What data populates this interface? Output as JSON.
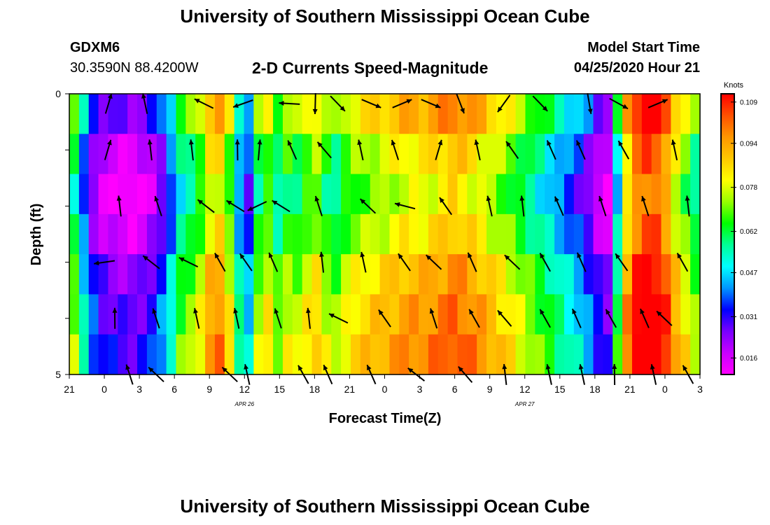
{
  "header": {
    "title": "University of Southern Mississippi Ocean Cube",
    "station": "GDXM6",
    "coordinates": "30.3590N 88.4200W",
    "chart_title": "2-D Currents Speed-Magnitude",
    "model_start_label": "Model Start Time",
    "model_start_value": "04/25/2020 Hour 21"
  },
  "footer": {
    "title": "University of Southern Mississippi Ocean Cube"
  },
  "colors": {
    "palette": [
      "#ff00ff",
      "#c800ff",
      "#7800ff",
      "#0000ff",
      "#0096ff",
      "#00ffff",
      "#00ff96",
      "#00ff00",
      "#96ff00",
      "#ffff00",
      "#ffc800",
      "#ff9600",
      "#ff5000",
      "#ff0000"
    ],
    "arrow": "#000000"
  },
  "chart_data": {
    "type": "heatmap",
    "title": "2-D Currents Speed-Magnitude",
    "xlabel": "Forecast Time(Z)",
    "ylabel": "Depth (ft)",
    "x_tick_labels": [
      "21",
      "0",
      "3",
      "6",
      "9",
      "12",
      "15",
      "18",
      "21",
      "0",
      "3",
      "6",
      "9",
      "12",
      "15",
      "18",
      "21",
      "0",
      "3"
    ],
    "date_labels": [
      {
        "text": "APR 26",
        "at_tick": 5
      },
      {
        "text": "APR 27",
        "at_tick": 13
      }
    ],
    "y_tick_labels": [
      "0",
      "5"
    ],
    "depth_range": [
      0,
      5
    ],
    "depth_levels": 5,
    "colorbar": {
      "label": "Knots",
      "range": [
        0.01,
        0.112
      ],
      "ticks": [
        "0.109",
        "0.094",
        "0.078",
        "0.062",
        "0.047",
        "0.031",
        "0.016"
      ],
      "tick_values": [
        0.109,
        0.094,
        0.078,
        0.062,
        0.047,
        0.031,
        0.016
      ]
    },
    "speed_columns": [
      0.06,
      0.04,
      0.025,
      0.018,
      0.016,
      0.015,
      0.014,
      0.016,
      0.02,
      0.028,
      0.04,
      0.055,
      0.06,
      0.068,
      0.082,
      0.085,
      0.07,
      0.045,
      0.035,
      0.062,
      0.07,
      0.058,
      0.066,
      0.063,
      0.07,
      0.074,
      0.064,
      0.06,
      0.068,
      0.072,
      0.074,
      0.076,
      0.078,
      0.08,
      0.082,
      0.083,
      0.083,
      0.085,
      0.087,
      0.09,
      0.088,
      0.085,
      0.082,
      0.078,
      0.074,
      0.07,
      0.065,
      0.06,
      0.055,
      0.05,
      0.045,
      0.04,
      0.035,
      0.028,
      0.02,
      0.015,
      0.05,
      0.085,
      0.1,
      0.105,
      0.104,
      0.095,
      0.08,
      0.07,
      0.06
    ],
    "speed_row_offsets": [
      0.01,
      0.0,
      -0.005,
      0.0,
      0.008,
      0.012,
      0.015
    ],
    "vectors": [
      {
        "level": 0,
        "points": [
          [
            1.0,
            5.0,
            0.6
          ],
          [
            2.1,
            4.5,
            0.3
          ],
          [
            3.8,
            3.6,
            0.2
          ],
          [
            5.0,
            2.8,
            -0.2
          ],
          [
            6.3,
            3.2,
            -0.1
          ],
          [
            7.0,
            1.6,
            0.1
          ],
          [
            7.6,
            0.8,
            0.3
          ],
          [
            8.6,
            0.4,
            0.1
          ],
          [
            9.5,
            -0.4,
            0.0
          ],
          [
            10.2,
            0.4,
            0.6
          ],
          [
            11.0,
            1.2,
            0.8
          ],
          [
            12.3,
            2.2,
            0.5
          ],
          [
            13.4,
            0.8,
            0.2
          ],
          [
            14.6,
            1.4,
            1.2
          ],
          [
            15.8,
            0.5,
            -0.6
          ],
          [
            16.6,
            -0.4,
            1.0
          ]
        ]
      },
      {
        "level": 1,
        "points": [
          [
            1.2,
            5.0,
            -0.5
          ],
          [
            2.4,
            4.6,
            -0.4
          ],
          [
            3.5,
            4.6,
            0.0
          ],
          [
            4.8,
            4.7,
            0.0
          ],
          [
            5.4,
            4.8,
            0.1
          ],
          [
            6.2,
            4.3,
            0.8
          ],
          [
            7.4,
            4.0,
            -0.6
          ],
          [
            8.2,
            4.5,
            0.6
          ],
          [
            9.1,
            4.4,
            1.0
          ],
          [
            10.4,
            5.0,
            0.7
          ],
          [
            11.6,
            4.5,
            0.3
          ],
          [
            12.6,
            4.1,
            0.2
          ],
          [
            13.7,
            4.3,
            0.3
          ],
          [
            14.6,
            4.3,
            0.0
          ],
          [
            15.8,
            4.2,
            0.1
          ],
          [
            17.2,
            4.5,
            0.4
          ]
        ]
      },
      {
        "level": 2,
        "points": [
          [
            1.4,
            4.6,
            0.2
          ],
          [
            2.6,
            4.4,
            -0.3
          ],
          [
            3.9,
            3.8,
            0.0
          ],
          [
            4.8,
            3.7,
            -0.3
          ],
          [
            5.2,
            2.7,
            0.8
          ],
          [
            6.0,
            3.7,
            0.2
          ],
          [
            7.0,
            4.4,
            0.6
          ],
          [
            8.3,
            3.9,
            1.1
          ],
          [
            9.4,
            3.4,
            0.9
          ],
          [
            10.6,
            4.1,
            0.7
          ],
          [
            12.1,
            4.5,
            -0.5
          ],
          [
            12.9,
            4.6,
            0.2
          ],
          [
            13.9,
            4.3,
            0.4
          ],
          [
            15.2,
            4.4,
            0.1
          ],
          [
            16.4,
            4.4,
            0.2
          ],
          [
            17.5,
            4.6,
            0.8
          ]
        ]
      },
      {
        "level": 3,
        "points": [
          [
            1.0,
            3.0,
            0.0
          ],
          [
            2.1,
            3.8,
            1.2
          ],
          [
            3.2,
            3.6,
            1.0
          ],
          [
            4.2,
            4.2,
            0.5
          ],
          [
            5.0,
            4.1,
            0.2
          ],
          [
            5.8,
            4.3,
            0.1
          ],
          [
            7.1,
            4.6,
            0.6
          ],
          [
            8.2,
            4.5,
            1.0
          ],
          [
            9.3,
            4.1,
            1.3
          ],
          [
            10.2,
            3.9,
            1.0
          ],
          [
            11.3,
            4.3,
            1.0
          ],
          [
            12.4,
            3.9,
            1.2
          ],
          [
            13.4,
            4.2,
            0.9
          ],
          [
            14.5,
            4.3,
            0.6
          ],
          [
            15.6,
            4.1,
            0.8
          ],
          [
            17.4,
            4.2,
            0.5
          ]
        ]
      },
      {
        "level": 4,
        "points": [
          [
            1.1,
            4.7,
            1.0
          ],
          [
            2.3,
            4.4,
            0.9
          ],
          [
            3.5,
            4.5,
            0.7
          ],
          [
            4.7,
            4.5,
            0.4
          ],
          [
            5.8,
            4.4,
            0.8
          ],
          [
            6.6,
            4.6,
            1.2
          ],
          [
            7.6,
            3.6,
            0.4
          ],
          [
            8.9,
            4.1,
            0.5
          ],
          [
            10.2,
            4.4,
            1.0
          ],
          [
            11.3,
            4.2,
            1.3
          ],
          [
            12.2,
            4.0,
            1.1
          ],
          [
            13.4,
            4.2,
            0.9
          ],
          [
            14.4,
            4.3,
            0.4
          ],
          [
            15.4,
            4.2,
            0.3
          ],
          [
            16.4,
            4.3,
            0.1
          ],
          [
            17.1,
            3.9,
            -0.6
          ]
        ]
      },
      {
        "level": 5,
        "points": [
          [
            2.0,
            4.4,
            -1.4
          ],
          [
            2.4,
            3.9,
            0.4
          ],
          [
            4.7,
            3.9,
            -0.6
          ],
          [
            5.2,
            4.5,
            -0.6
          ],
          [
            6.6,
            4.2,
            0.4
          ],
          [
            7.2,
            4.3,
            0.9
          ],
          [
            8.4,
            4.3,
            1.1
          ],
          [
            9.8,
            3.8,
            0.5
          ],
          [
            11.1,
            4.0,
            1.0
          ],
          [
            12.4,
            4.6,
            0.2
          ],
          [
            13.6,
            4.5,
            0.5
          ],
          [
            14.7,
            4.5,
            -0.3
          ],
          [
            15.8,
            4.7,
            -1.2
          ],
          [
            16.8,
            4.5,
            -0.6
          ],
          [
            17.8,
            4.2,
            -0.7
          ]
        ]
      }
    ]
  }
}
